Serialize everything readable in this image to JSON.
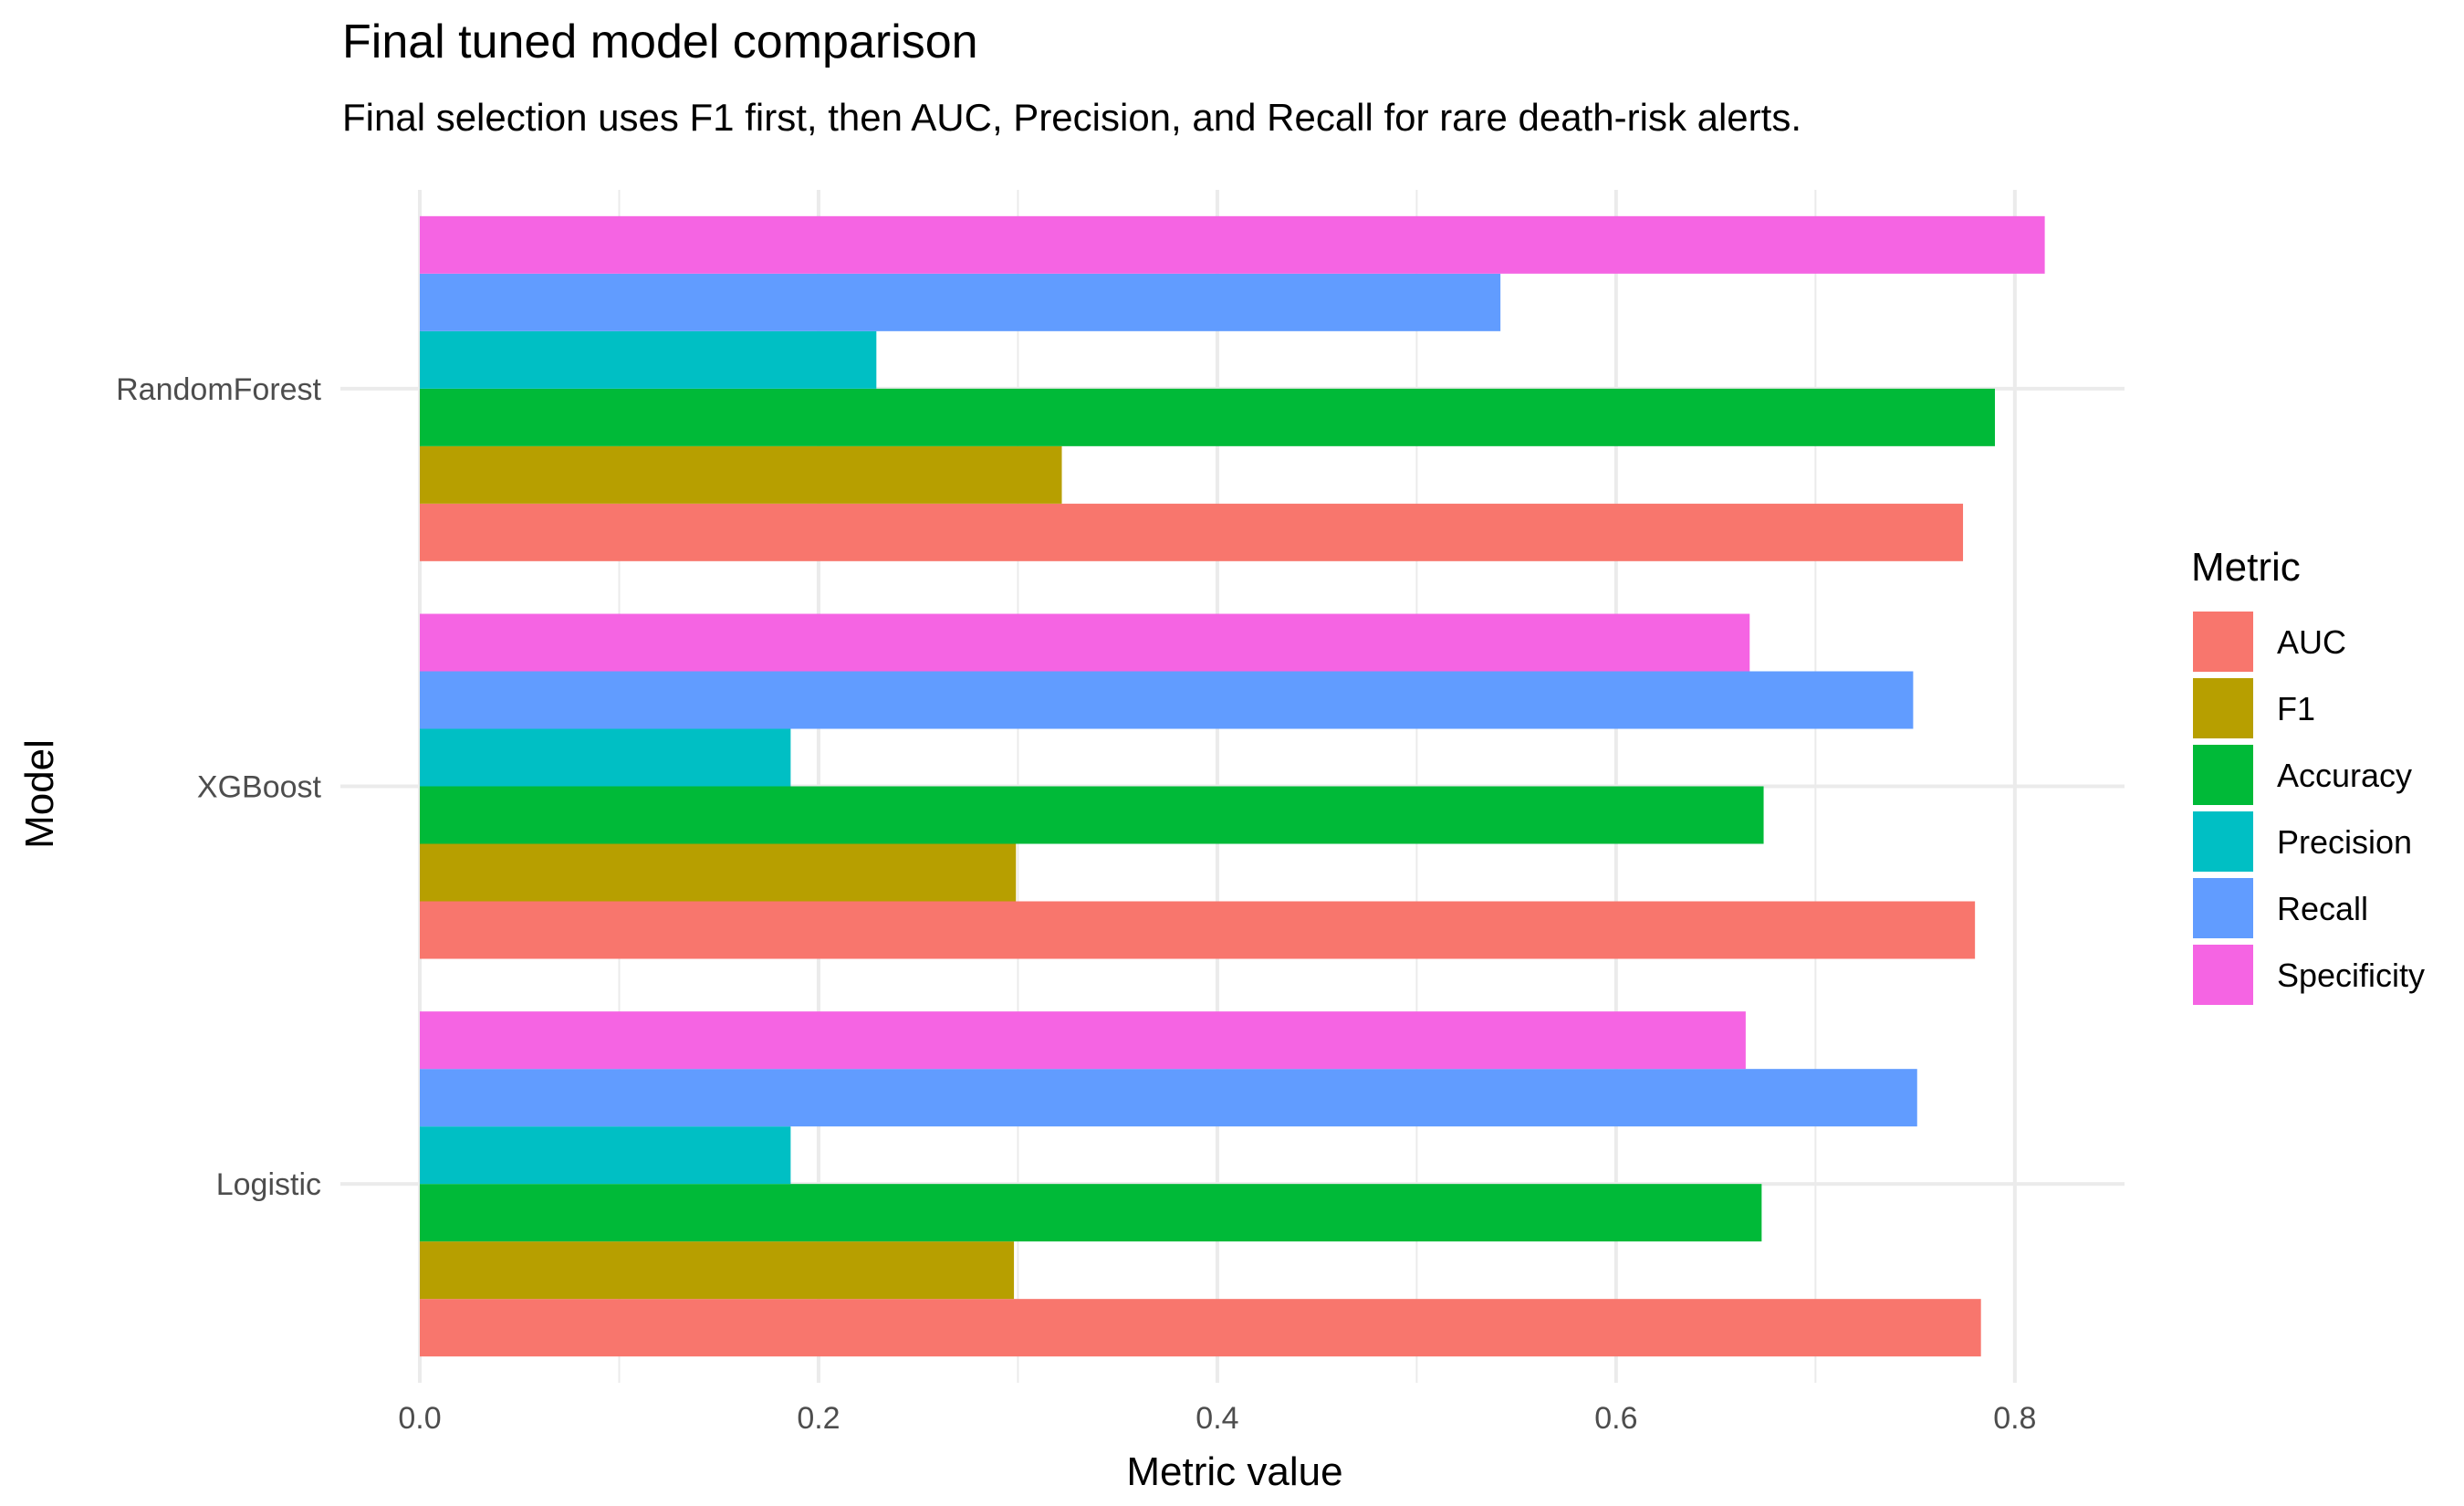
{
  "chart_data": {
    "type": "bar",
    "orientation": "horizontal",
    "title": "Final tuned model comparison",
    "subtitle": "Final selection uses F1 first, then AUC, Precision, and Recall for rare death-risk alerts.",
    "xlabel": "Metric value",
    "ylabel": "Model",
    "xlim": [
      0,
      0.855
    ],
    "x_ticks": [
      "0.0",
      "0.2",
      "0.4",
      "0.6",
      "0.8"
    ],
    "x_tick_values": [
      0,
      0.2,
      0.4,
      0.6,
      0.8
    ],
    "categories": [
      "RandomForest",
      "XGBoost",
      "Logistic"
    ],
    "grid": true,
    "legend": {
      "title": "Metric",
      "position": "right"
    },
    "series": [
      {
        "name": "AUC",
        "color": "#F8766D",
        "values": [
          0.774,
          0.78,
          0.783
        ]
      },
      {
        "name": "F1",
        "color": "#B79F00",
        "values": [
          0.322,
          0.299,
          0.298
        ]
      },
      {
        "name": "Accuracy",
        "color": "#00BA38",
        "values": [
          0.79,
          0.674,
          0.673
        ]
      },
      {
        "name": "Precision",
        "color": "#00BFC4",
        "values": [
          0.229,
          0.186,
          0.186
        ]
      },
      {
        "name": "Recall",
        "color": "#619CFF",
        "values": [
          0.542,
          0.749,
          0.751
        ]
      },
      {
        "name": "Specificity",
        "color": "#F564E3",
        "values": [
          0.815,
          0.667,
          0.665
        ]
      }
    ]
  }
}
